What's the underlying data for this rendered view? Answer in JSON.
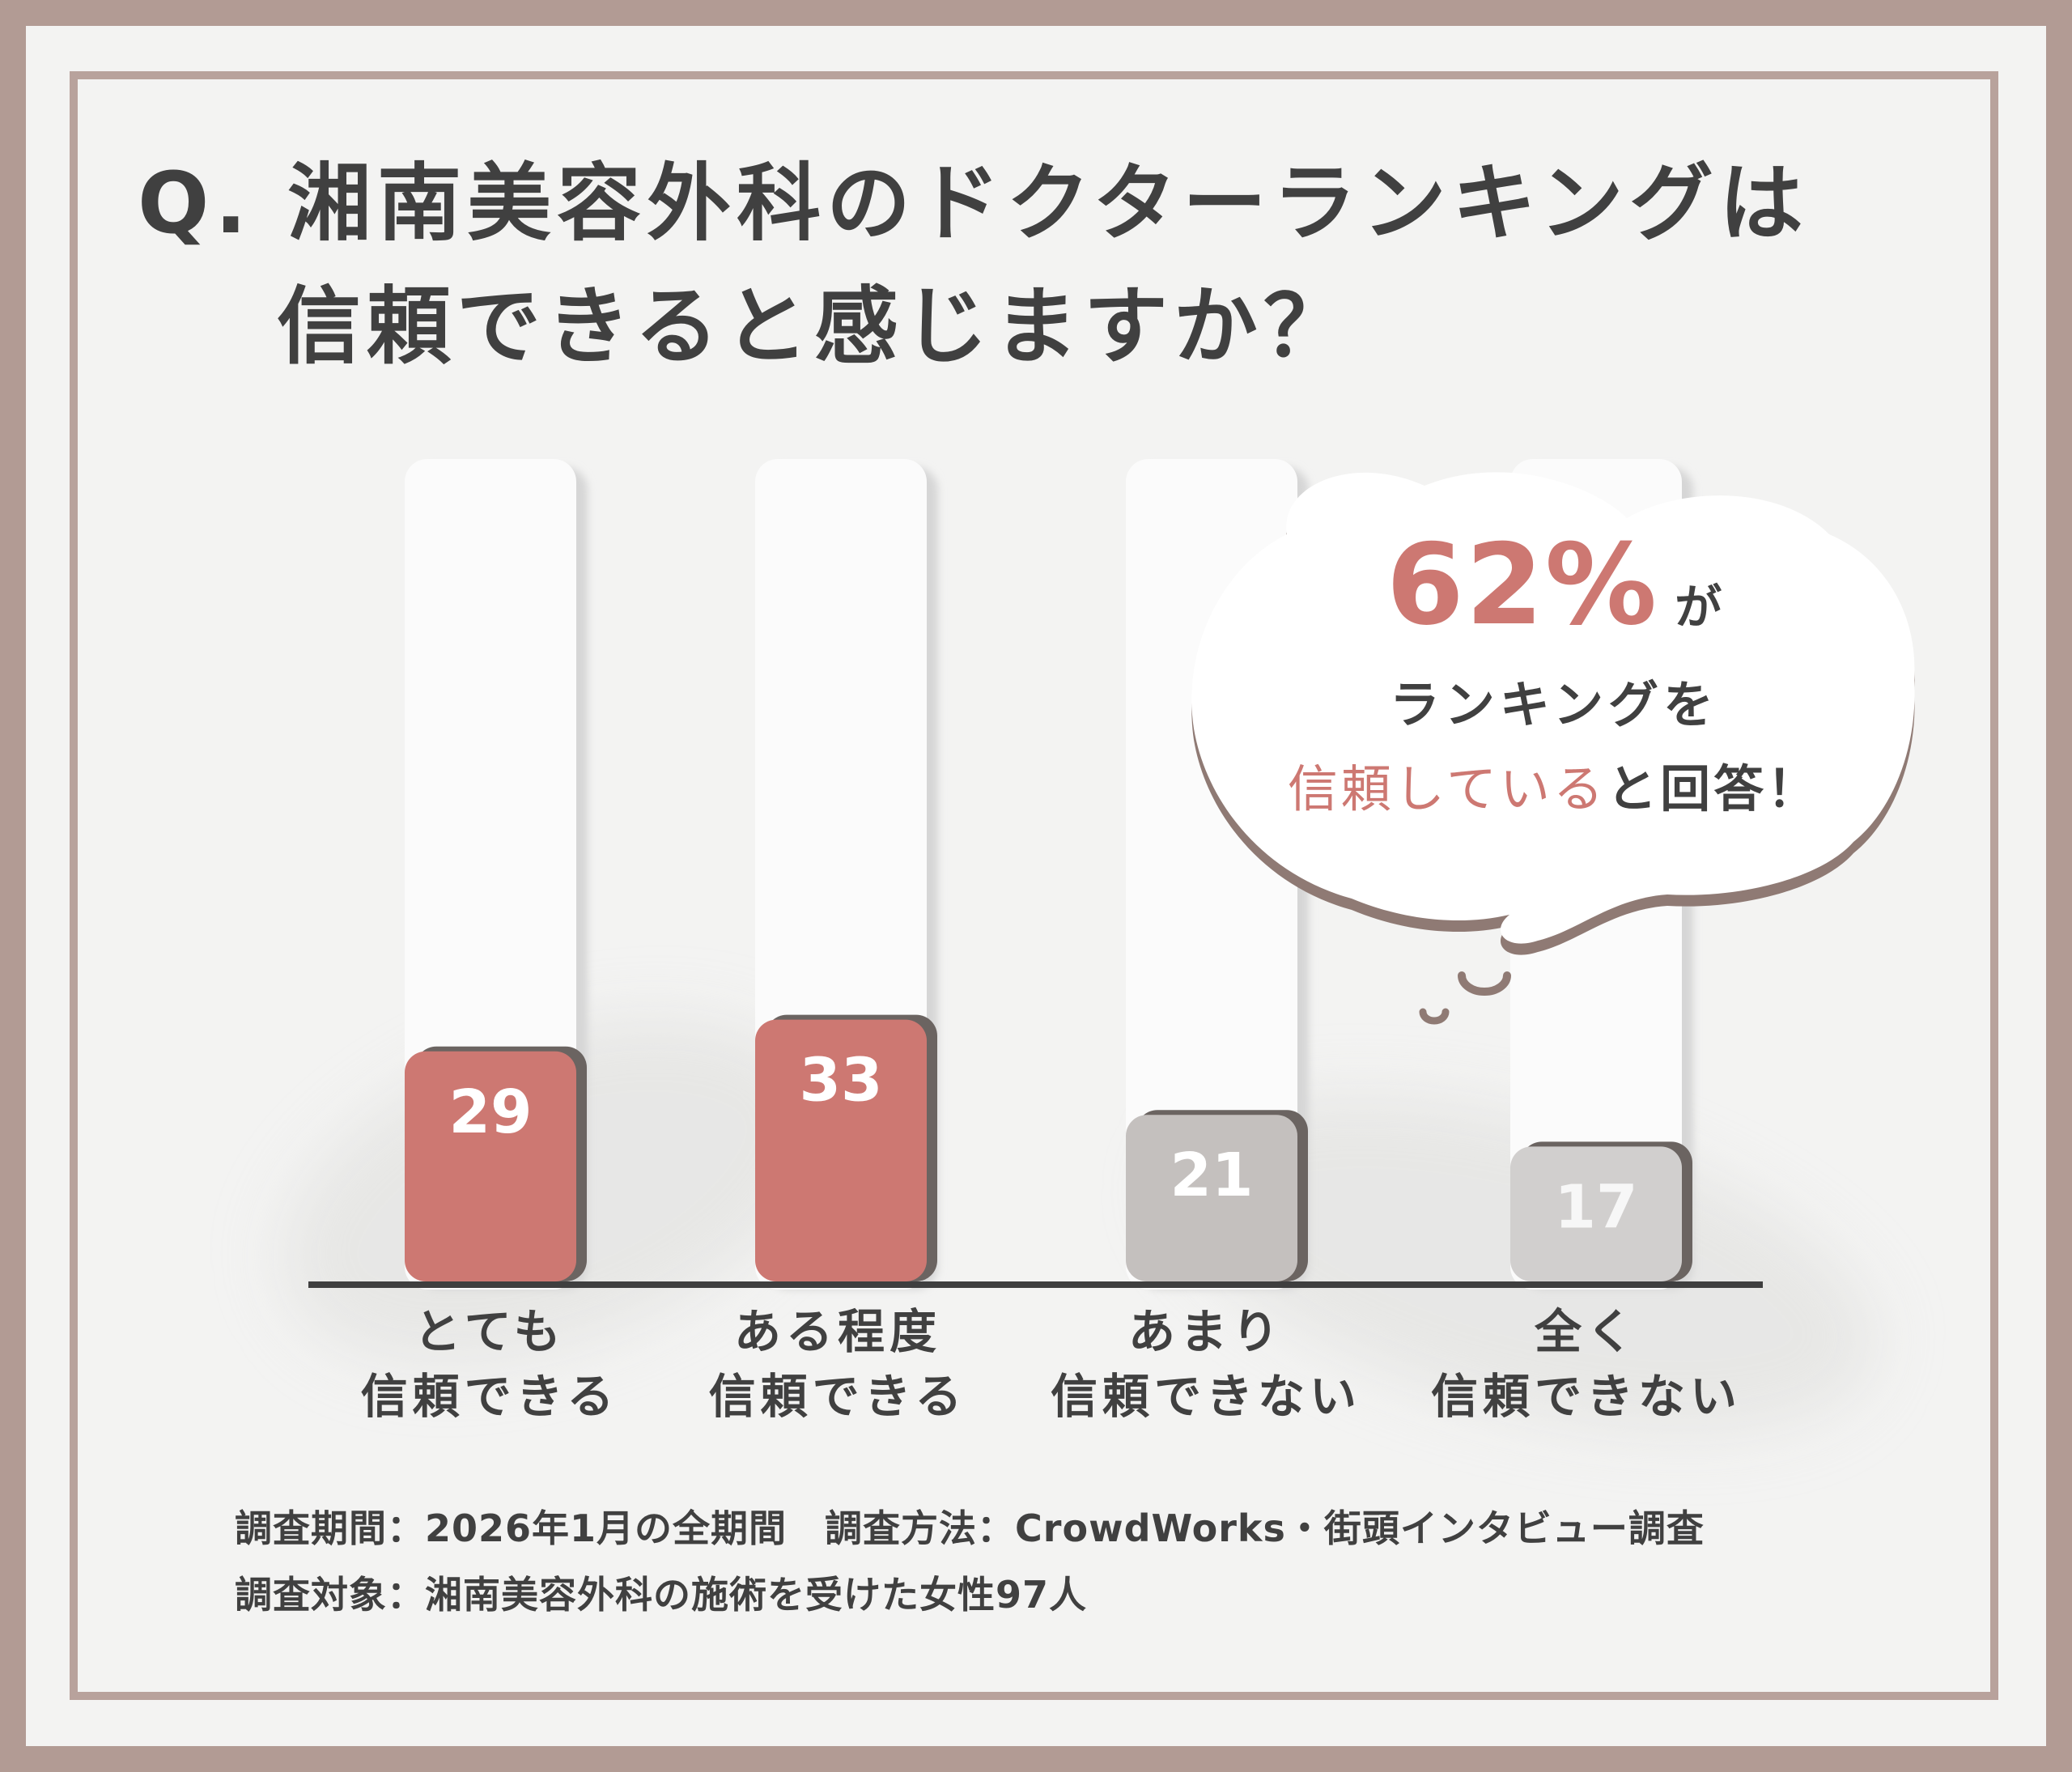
{
  "title": {
    "line1": "Q. 湘南美容外科のドクターランキングは",
    "line2": "信頼できると感じますか？"
  },
  "chart_data": {
    "type": "bar",
    "categories": [
      [
        "とても",
        "信頼できる"
      ],
      [
        "ある程度",
        "信頼できる"
      ],
      [
        "あまり",
        "信頼できない"
      ],
      [
        "全く",
        "信頼できない"
      ]
    ],
    "values": [
      29,
      33,
      21,
      17
    ],
    "colors": [
      "#cd7872",
      "#cd7872",
      "#c4c0be",
      "#d1cfce"
    ]
  },
  "callout": {
    "percent": "62%",
    "percent_suffix": "が",
    "line1": "ランキングを",
    "highlight": "信頼している",
    "tail": "と回答！"
  },
  "footnotes": {
    "line1": "調査期間：2026年1月の全期間　調査方法：CrowdWorks・街頭インタビュー調査",
    "line2": "調査対象：湘南美容外科の施術を受けた女性97人"
  }
}
